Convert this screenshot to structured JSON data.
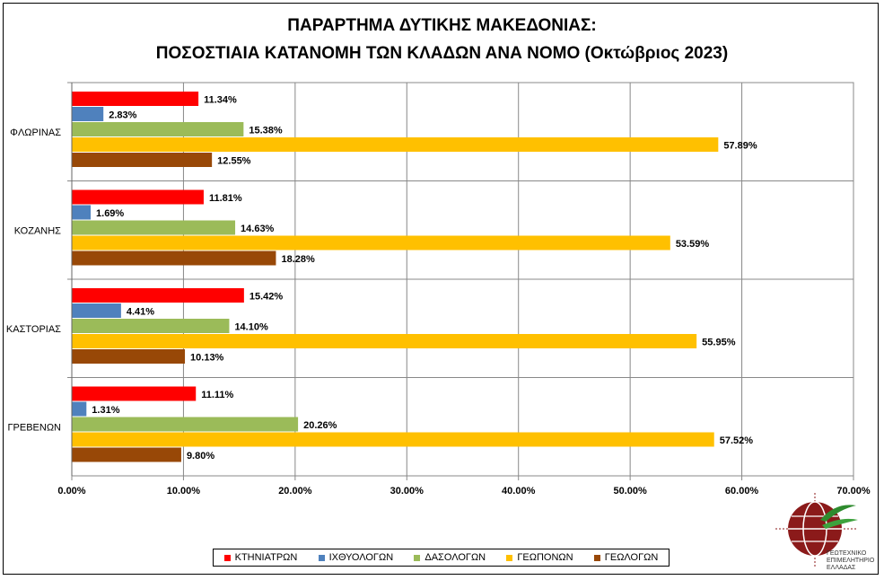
{
  "title_line1": "ΠΑΡΑΡΤΗΜΑ ΔΥΤΙΚΗΣ ΜΑΚΕΔΟΝΙΑΣ:",
  "title_line2": "ΠΟΣΟΣΤΙΑΙΑ ΚΑΤΑΝΟΜΗ ΤΩΝ ΚΛΑΔΩΝ ΑΝΑ ΝΟΜΟ (Οκτώβριος 2023)",
  "logo_caption": [
    "ΓΕΩΤΕΧΝΙΚΟ",
    "ΕΠΙΜΕΛΗΤΗΡΙΟ",
    "ΕΛΛΑΔΑΣ"
  ],
  "chart_data": {
    "type": "bar",
    "orientation": "horizontal",
    "title": "ΠΑΡΑΡΤΗΜΑ ΔΥΤΙΚΗΣ ΜΑΚΕΔΟΝΙΑΣ: ΠΟΣΟΣΤΙΑΙΑ ΚΑΤΑΝΟΜΗ ΤΩΝ ΚΛΑΔΩΝ ΑΝΑ ΝΟΜΟ (Οκτώβριος 2023)",
    "categories": [
      "ΦΛΩΡΙΝΑΣ",
      "ΚΟΖΑΝΗΣ",
      "ΚΑΣΤΟΡΙΑΣ",
      "ΓΡΕΒΕΝΩΝ"
    ],
    "xlim": [
      0,
      70
    ],
    "xticks": [
      "0.00%",
      "10.00%",
      "20.00%",
      "30.00%",
      "40.00%",
      "50.00%",
      "60.00%",
      "70.00%"
    ],
    "grid": true,
    "legend_position": "bottom",
    "series": [
      {
        "name": "ΚΤΗΝΙΑΤΡΩΝ",
        "color": "#ff0000",
        "values": [
          11.34,
          11.81,
          15.42,
          11.11
        ],
        "labels": [
          "11.34%",
          "11.81%",
          "15.42%",
          "11.11%"
        ]
      },
      {
        "name": "ΙΧΘΥΟΛΟΓΩΝ",
        "color": "#4f81bd",
        "values": [
          2.83,
          1.69,
          4.41,
          1.31
        ],
        "labels": [
          "2.83%",
          "1.69%",
          "4.41%",
          "1.31%"
        ]
      },
      {
        "name": "ΔΑΣΟΛΟΓΩΝ",
        "color": "#9bbb59",
        "values": [
          15.38,
          14.63,
          14.1,
          20.26
        ],
        "labels": [
          "15.38%",
          "14.63%",
          "14.10%",
          "20.26%"
        ]
      },
      {
        "name": "ΓΕΩΠΟΝΩΝ",
        "color": "#ffc000",
        "values": [
          57.89,
          53.59,
          55.95,
          57.52
        ],
        "labels": [
          "57.89%",
          "53.59%",
          "55.95%",
          "57.52%"
        ]
      },
      {
        "name": "ΓΕΩΛΟΓΩΝ",
        "color": "#984807",
        "values": [
          12.55,
          18.28,
          10.13,
          9.8
        ],
        "labels": [
          "12.55%",
          "18.28%",
          "10.13%",
          "9.80%"
        ]
      }
    ]
  }
}
